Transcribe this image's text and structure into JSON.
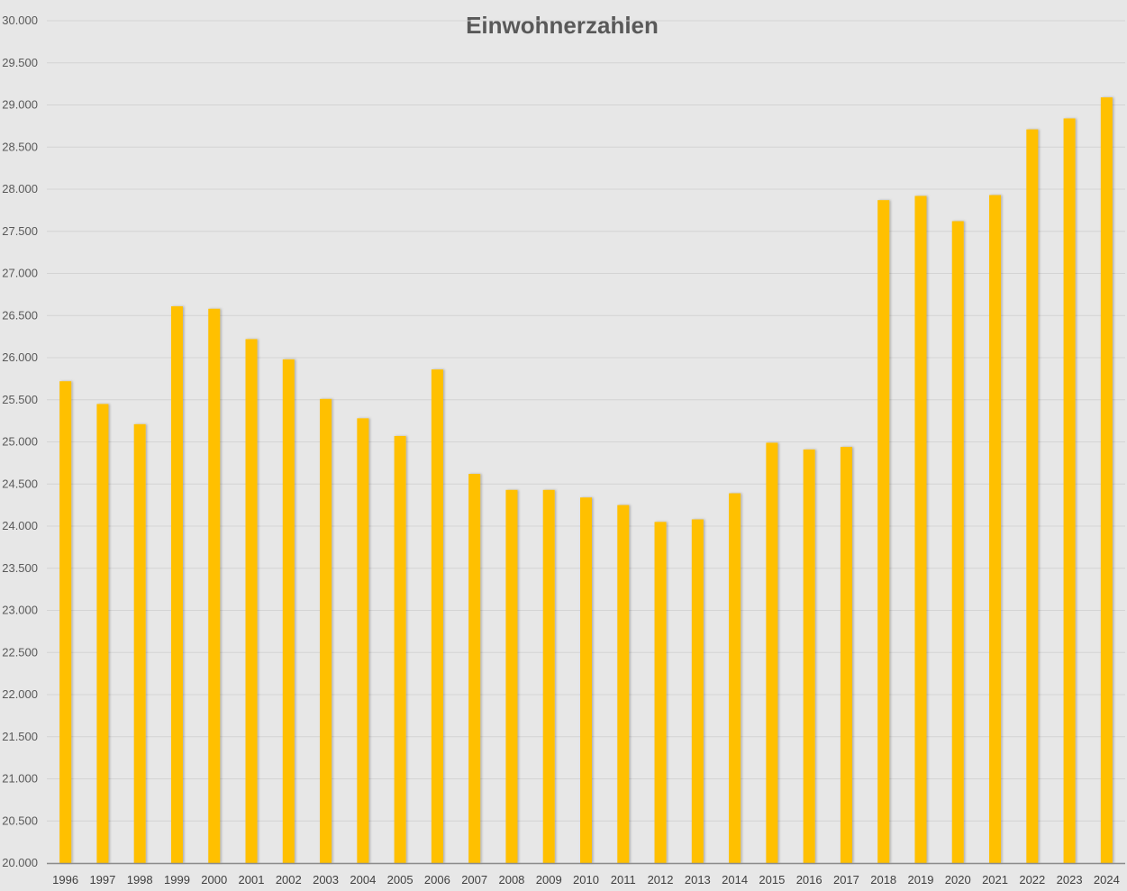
{
  "chart_data": {
    "type": "bar",
    "title": "Einwohnerzahlen",
    "xlabel": "",
    "ylabel": "",
    "ylim": [
      20000,
      30000
    ],
    "yticks": [
      20000,
      20500,
      21000,
      21500,
      22000,
      22500,
      23000,
      23500,
      24000,
      24500,
      25000,
      25500,
      26000,
      26500,
      27000,
      27500,
      28000,
      28500,
      29000,
      29500,
      30000
    ],
    "ytick_labels": [
      "20.000",
      "20.500",
      "21.000",
      "21.500",
      "22.000",
      "22.500",
      "23.000",
      "23.500",
      "24.000",
      "24.500",
      "25.000",
      "25.500",
      "26.000",
      "26.500",
      "27.000",
      "27.500",
      "28.000",
      "28.500",
      "29.000",
      "29.500",
      "30.000"
    ],
    "grid": true,
    "legend": "none",
    "categories": [
      "1996",
      "1997",
      "1998",
      "1999",
      "2000",
      "2001",
      "2002",
      "2003",
      "2004",
      "2005",
      "2006",
      "2007",
      "2008",
      "2009",
      "2010",
      "2011",
      "2012",
      "2013",
      "2014",
      "2015",
      "2016",
      "2017",
      "2018",
      "2019",
      "2020",
      "2021",
      "2022",
      "2023",
      "2024"
    ],
    "values": [
      25720,
      25450,
      25210,
      26610,
      26580,
      26220,
      25980,
      25510,
      25280,
      25070,
      25860,
      24620,
      24430,
      24430,
      24340,
      24250,
      24050,
      24080,
      24390,
      24990,
      24910,
      24940,
      27870,
      27920,
      27620,
      27930,
      28710,
      28840,
      29090
    ],
    "colors": {
      "bar": "#ffc000",
      "background": "#e7e7e7",
      "grid": "#d4d4d4",
      "axis": "#8c8c8c"
    }
  }
}
